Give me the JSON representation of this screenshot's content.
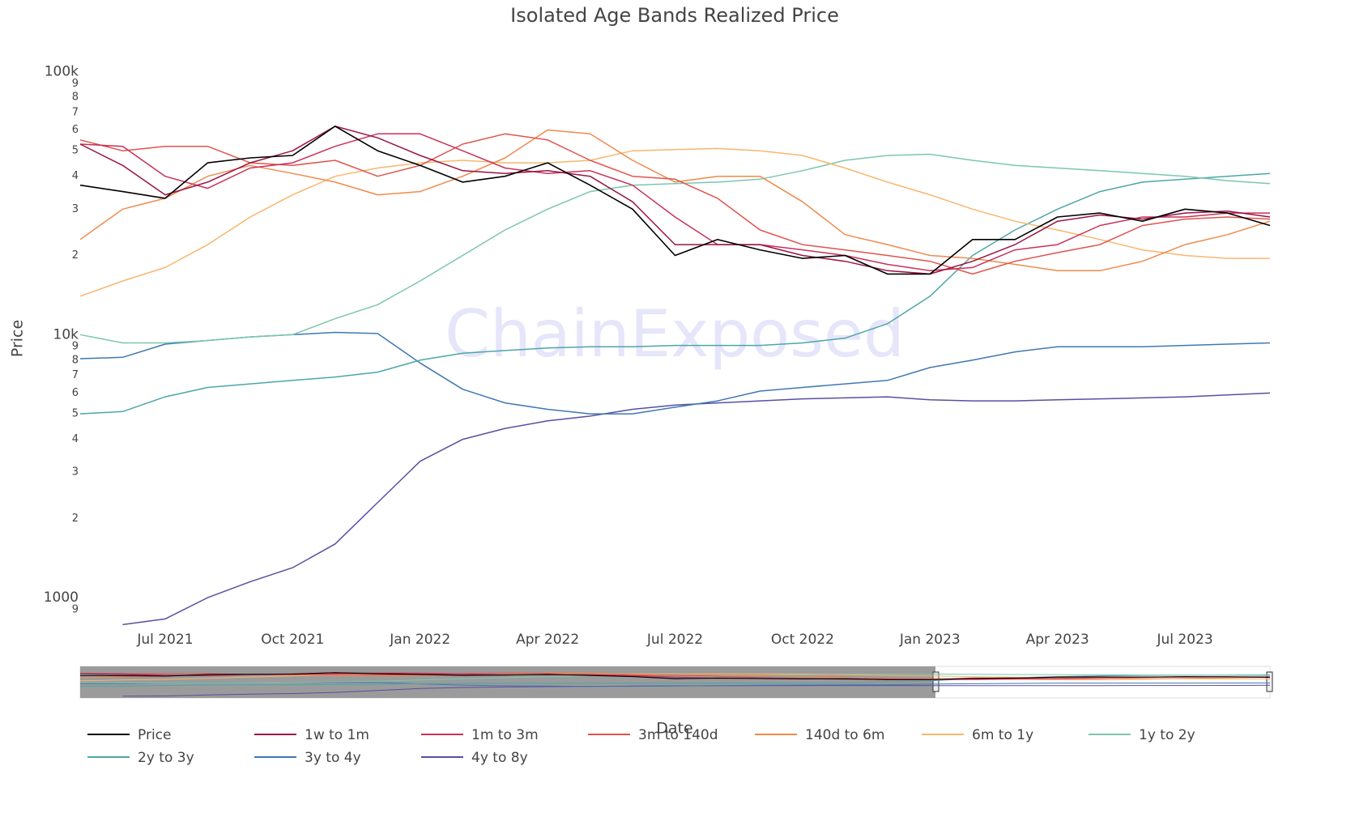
{
  "chart_data": {
    "type": "line",
    "title": "Isolated Age Bands Realized Price",
    "watermark": "ChainExposed",
    "x_label": "Date",
    "y_label": "Price",
    "log_y": true,
    "grid": false,
    "legend": "bottom",
    "x": [
      "2021-05",
      "2021-06",
      "2021-07",
      "2021-08",
      "2021-09",
      "2021-10",
      "2021-11",
      "2021-12",
      "2022-01",
      "2022-02",
      "2022-03",
      "2022-04",
      "2022-05",
      "2022-06",
      "2022-07",
      "2022-08",
      "2022-09",
      "2022-10",
      "2022-11",
      "2022-12",
      "2023-01",
      "2023-02",
      "2023-03",
      "2023-04",
      "2023-05",
      "2023-06",
      "2023-07",
      "2023-08",
      "2023-09"
    ],
    "xlim": [
      "2021-05",
      "2023-09"
    ],
    "xticks": [
      {
        "value": "2021-07",
        "label": "Jul 2021"
      },
      {
        "value": "2021-10",
        "label": "Oct 2021"
      },
      {
        "value": "2022-01",
        "label": "Jan 2022"
      },
      {
        "value": "2022-04",
        "label": "Apr 2022"
      },
      {
        "value": "2022-07",
        "label": "Jul 2022"
      },
      {
        "value": "2022-10",
        "label": "Oct 2022"
      },
      {
        "value": "2023-01",
        "label": "Jan 2023"
      },
      {
        "value": "2023-04",
        "label": "Apr 2023"
      },
      {
        "value": "2023-07",
        "label": "Jul 2023"
      }
    ],
    "ylim": [
      770,
      110000
    ],
    "yticks": [
      {
        "value": 900,
        "label": "9"
      },
      1000,
      {
        "value": 2000,
        "label": "2"
      },
      {
        "value": 3000,
        "label": "3"
      },
      {
        "value": 4000,
        "label": "4"
      },
      {
        "value": 5000,
        "label": "5"
      },
      {
        "value": 6000,
        "label": "6"
      },
      {
        "value": 7000,
        "label": "7"
      },
      {
        "value": 8000,
        "label": "8"
      },
      {
        "value": 9000,
        "label": "9"
      },
      {
        "value": 10000,
        "label": "10k"
      },
      {
        "value": 20000,
        "label": "2"
      },
      {
        "value": 30000,
        "label": "3"
      },
      {
        "value": 40000,
        "label": "4"
      },
      {
        "value": 50000,
        "label": "5"
      },
      {
        "value": 60000,
        "label": "6"
      },
      {
        "value": 70000,
        "label": "7"
      },
      {
        "value": 80000,
        "label": "8"
      },
      {
        "value": 90000,
        "label": "9"
      },
      {
        "value": 100000,
        "label": "100k"
      }
    ],
    "series": [
      {
        "name": "Price",
        "color": "#000000",
        "values": [
          37000,
          35000,
          33000,
          45000,
          47000,
          48000,
          62000,
          50000,
          44000,
          38000,
          40000,
          45000,
          37000,
          30000,
          20000,
          23000,
          21000,
          19500,
          20000,
          17000,
          17000,
          23000,
          23000,
          28000,
          29000,
          27000,
          30000,
          29000,
          26000
        ]
      },
      {
        "name": "1w to 1m",
        "color": "#9b1346",
        "values": [
          53000,
          44000,
          34000,
          38000,
          45000,
          50000,
          62000,
          56000,
          48000,
          42000,
          41000,
          42000,
          40000,
          32000,
          22000,
          22000,
          22000,
          20000,
          19000,
          17500,
          17000,
          19000,
          22000,
          27000,
          28500,
          27500,
          29000,
          29500,
          28000
        ]
      },
      {
        "name": "1m to 3m",
        "color": "#c93158",
        "values": [
          53000,
          52000,
          40000,
          36000,
          43000,
          45000,
          52000,
          58000,
          58000,
          50000,
          43000,
          41000,
          42000,
          37000,
          28000,
          22000,
          22000,
          21000,
          20000,
          18500,
          17500,
          18000,
          21000,
          22000,
          26000,
          28000,
          28000,
          29000,
          29000
        ]
      },
      {
        "name": "3m to 140d",
        "color": "#e0544d",
        "values": [
          55000,
          50000,
          52000,
          52000,
          45000,
          44000,
          46000,
          40000,
          44000,
          53000,
          58000,
          55000,
          46000,
          40000,
          39000,
          33000,
          25000,
          22000,
          21000,
          20000,
          19000,
          17000,
          19000,
          20500,
          22000,
          26000,
          27500,
          28000,
          27500
        ]
      },
      {
        "name": "140d to 6m",
        "color": "#ef8a4c",
        "values": [
          23000,
          30000,
          33000,
          40000,
          44000,
          41000,
          38000,
          34000,
          35000,
          40000,
          47000,
          60000,
          58000,
          46000,
          38000,
          40000,
          40000,
          32000,
          24000,
          22000,
          20000,
          19500,
          18500,
          17500,
          17500,
          19000,
          22000,
          24000,
          27000
        ]
      },
      {
        "name": "6m to 1y",
        "color": "#f8b66e",
        "values": [
          14000,
          16000,
          18000,
          22000,
          28000,
          34000,
          40000,
          43000,
          45000,
          46000,
          45000,
          45000,
          46000,
          50000,
          50500,
          51000,
          50000,
          48000,
          43000,
          38000,
          34000,
          30000,
          27000,
          25000,
          23000,
          21000,
          20000,
          19500,
          19500
        ]
      },
      {
        "name": "1y to 2y",
        "color": "#7cc6ae",
        "values": [
          10000,
          9300,
          9300,
          9500,
          9800,
          10000,
          11500,
          13000,
          16000,
          20000,
          25000,
          30000,
          35000,
          37000,
          37500,
          38000,
          39000,
          42000,
          46000,
          48000,
          48500,
          46000,
          44000,
          43000,
          42000,
          41000,
          40000,
          38500,
          37500
        ]
      },
      {
        "name": "2y to 3y",
        "color": "#4ea6a7",
        "values": [
          5000,
          5100,
          5800,
          6300,
          6500,
          6700,
          6900,
          7200,
          8000,
          8500,
          8700,
          8900,
          9000,
          9000,
          9100,
          9100,
          9100,
          9300,
          9700,
          11000,
          14000,
          20000,
          25000,
          30000,
          35000,
          38000,
          39000,
          40000,
          41000
        ]
      },
      {
        "name": "3y to 4y",
        "color": "#3f78b3",
        "values": [
          8100,
          8200,
          9200,
          9500,
          9800,
          10000,
          10200,
          10100,
          7800,
          6200,
          5500,
          5200,
          5000,
          5000,
          5300,
          5600,
          6100,
          6300,
          6500,
          6700,
          7500,
          8000,
          8600,
          9000,
          9000,
          9000,
          9100,
          9200,
          9300
        ]
      },
      {
        "name": "4y to 8y",
        "color": "#5a4ea1",
        "values": [
          null,
          790,
          830,
          1000,
          1150,
          1300,
          1600,
          2300,
          3300,
          4000,
          4400,
          4700,
          4900,
          5200,
          5400,
          5500,
          5600,
          5700,
          5750,
          5800,
          5650,
          5600,
          5600,
          5650,
          5700,
          5750,
          5800,
          5900,
          6000
        ]
      }
    ]
  }
}
